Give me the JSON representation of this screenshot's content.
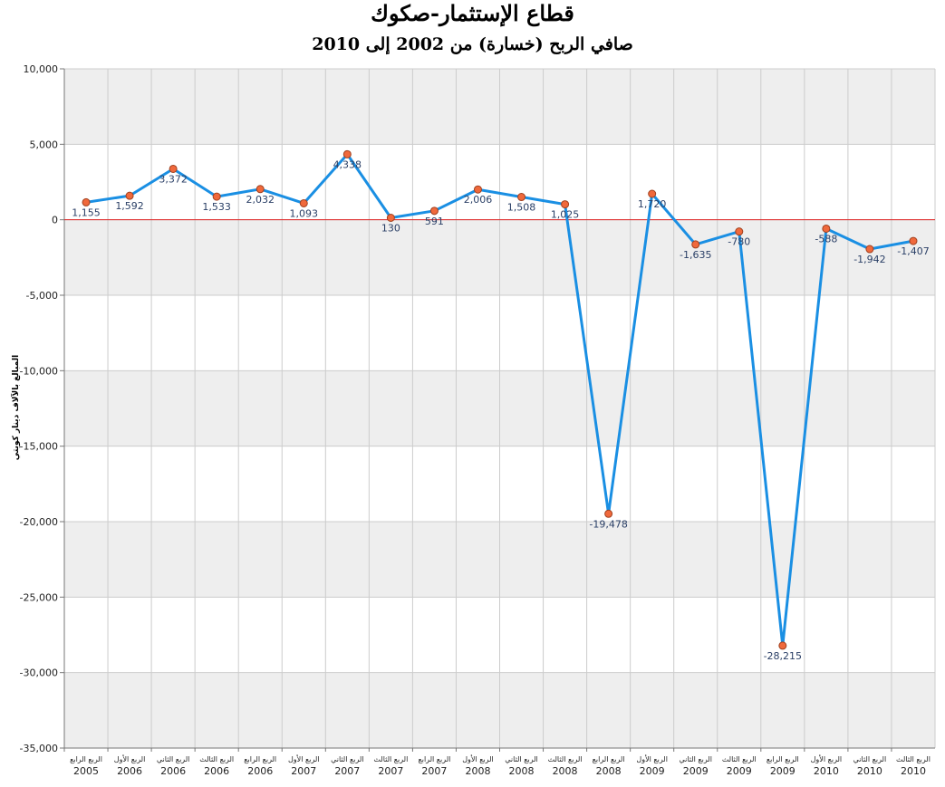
{
  "chart_data": {
    "type": "line",
    "title": "قطاع الإستثمار-صكوك",
    "subtitle": "صافي الربح (خسارة) من 2002 إلى 2010",
    "ylabel": "المبالغ بالآلاف دينار كويتي",
    "ylim": [
      -35000,
      10000
    ],
    "yticks": [
      "10,000",
      "5,000",
      "0",
      "-5,000",
      "-10,000",
      "-15,000",
      "-20,000",
      "-25,000",
      "-30,000",
      "-35,000"
    ],
    "categories": [
      {
        "quarter": "الربع الرابع",
        "year": "2005"
      },
      {
        "quarter": "الربع الأول",
        "year": "2006"
      },
      {
        "quarter": "الربع الثاني",
        "year": "2006"
      },
      {
        "quarter": "الربع الثالث",
        "year": "2006"
      },
      {
        "quarter": "الربع الرابع",
        "year": "2006"
      },
      {
        "quarter": "الربع الأول",
        "year": "2007"
      },
      {
        "quarter": "الربع الثاني",
        "year": "2007"
      },
      {
        "quarter": "الربع الثالث",
        "year": "2007"
      },
      {
        "quarter": "الربع الرابع",
        "year": "2007"
      },
      {
        "quarter": "الربع الأول",
        "year": "2008"
      },
      {
        "quarter": "الربع الثاني",
        "year": "2008"
      },
      {
        "quarter": "الربع الثالث",
        "year": "2008"
      },
      {
        "quarter": "الربع الرابع",
        "year": "2008"
      },
      {
        "quarter": "الربع الأول",
        "year": "2009"
      },
      {
        "quarter": "الربع الثاني",
        "year": "2009"
      },
      {
        "quarter": "الربع الثالث",
        "year": "2009"
      },
      {
        "quarter": "الربع الرابع",
        "year": "2009"
      },
      {
        "quarter": "الربع الأول",
        "year": "2010"
      },
      {
        "quarter": "الربع الثاني",
        "year": "2010"
      },
      {
        "quarter": "الربع الثالث",
        "year": "2010"
      }
    ],
    "values": [
      1155,
      1592,
      3372,
      1533,
      2032,
      1093,
      4338,
      130,
      591,
      2006,
      1508,
      1025,
      -19478,
      1720,
      -1635,
      -780,
      -28215,
      -588,
      -1942,
      -1407
    ],
    "value_labels": [
      "1,155",
      "1,592",
      "3,372",
      "1,533",
      "2,032",
      "1,093",
      "4,338",
      "130",
      "591",
      "2,006",
      "1,508",
      "1,025",
      "-19,478",
      "1,720",
      "-1,635",
      "-780",
      "-28,215",
      "-588",
      "-1,942",
      "-1,407"
    ],
    "label_position": [
      "below",
      "below",
      "below",
      "below",
      "below",
      "below",
      "below",
      "below",
      "below",
      "below",
      "below",
      "below",
      "below",
      "below",
      "below",
      "below",
      "below",
      "below",
      "below",
      "below"
    ],
    "grid": true,
    "zero_line": true,
    "colors": {
      "line": "#1a8fe3",
      "marker_fill": "#f0693c",
      "marker_stroke": "#a0401e",
      "zero_line": "#e02020",
      "band": "#eeeeee",
      "grid": "#cccccc",
      "data_label": "#2a3f66"
    }
  }
}
